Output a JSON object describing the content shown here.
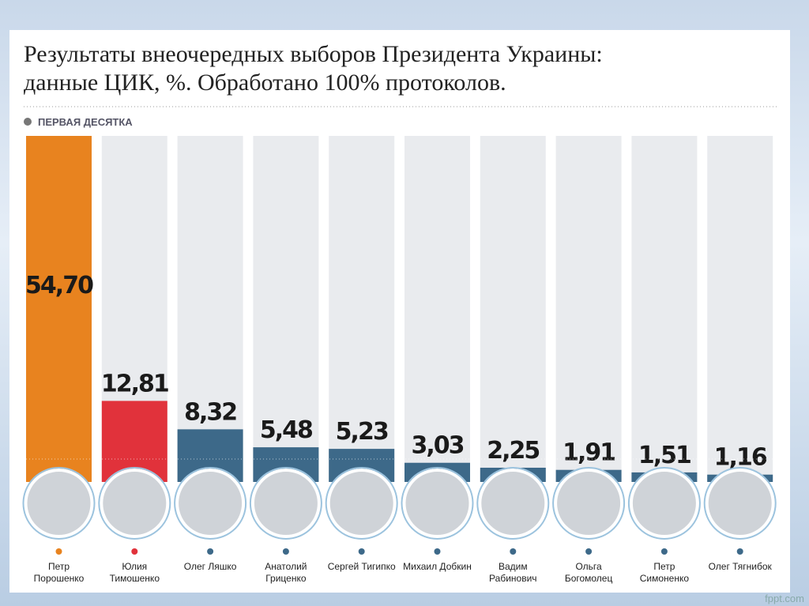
{
  "chart_data": {
    "type": "bar",
    "title": [
      "Результаты внеочередных выборов Президента Украины:",
      "данные ЦИК, %. Обработано 100% протоколов."
    ],
    "subtitle": "ПЕРВАЯ ДЕСЯТКА",
    "categories": [
      "Петр Порошенко",
      "Юлия Тимошенко",
      "Олег Ляшко",
      "Анатолий Гриценко",
      "Сергей Тигипко",
      "Михаил Добкин",
      "Вадим Рабинович",
      "Ольга Богомолец",
      "Петр Симоненко",
      "Олег Тягнибок"
    ],
    "values": [
      54.7,
      12.81,
      8.32,
      5.48,
      5.23,
      3.03,
      2.25,
      1.91,
      1.51,
      1.16
    ],
    "value_labels": [
      "54,70",
      "12,81",
      "8,32",
      "5,48",
      "5,23",
      "3,03",
      "2,25",
      "1,91",
      "1,51",
      "1,16"
    ],
    "colors": [
      "#e8831f",
      "#e1323b",
      "#3d6989",
      "#3d6989",
      "#3d6989",
      "#3d6989",
      "#3d6989",
      "#3d6989",
      "#3d6989",
      "#3d6989"
    ],
    "watermark": "fppt.com"
  }
}
